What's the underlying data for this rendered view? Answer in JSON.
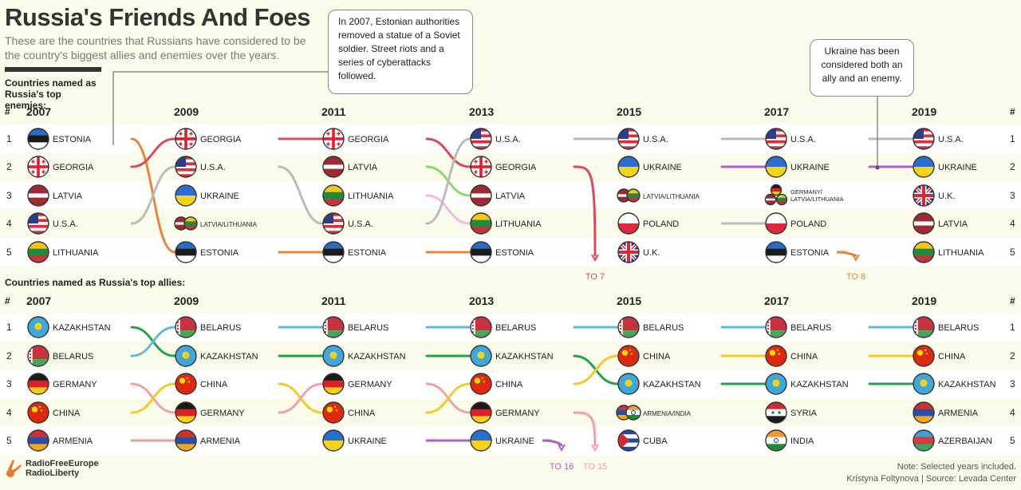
{
  "header": {
    "title": "Russia's Friends And Foes",
    "subtitle": "These are the countries that Russians have considered to be the country's biggest allies and enemies over the years."
  },
  "callouts": {
    "estonia": "In 2007, Estonian authorities removed a statue of a Soviet soldier. Street riots and a series of cyberattacks followed.",
    "ukraine": "Ukraine has been considered both an ally and an enemy."
  },
  "footer": {
    "logo_line1": "RadioFreeEurope",
    "logo_line2": "RadioLiberty",
    "note": "Note: Selected years included.",
    "credit": "Kristyna Foltynova | Source: Levada Center"
  },
  "colors": {
    "estonia": "#e8853a",
    "georgia": "#d94a5a",
    "usa": "#2a7fc1",
    "latvia": "#8fd866",
    "lithuania": "#f5b8e0",
    "ukraine": "#b061c4",
    "latvia_lithuania": "#9de07a",
    "germany_latvia_lithuania": "#f5b8e0",
    "kazakhstan": "#22a34a",
    "belarus": "#62b9dd",
    "germany": "#f2a0a8",
    "china": "#f5c928",
    "armenia": "#e8a0a0"
  },
  "chart_data": [
    {
      "type": "bump",
      "title": "Countries named as Russia's top enemies:",
      "rank_header": "#",
      "years": [
        "2007",
        "2009",
        "2011",
        "2013",
        "2015",
        "2017",
        "2019"
      ],
      "ranks": [
        1,
        2,
        3,
        4,
        5
      ],
      "rankings": {
        "2007": [
          "ESTONIA",
          "GEORGIA",
          "LATVIA",
          "U.S.A.",
          "LITHUANIA"
        ],
        "2009": [
          "GEORGIA",
          "U.S.A.",
          "UKRAINE",
          "LATVIA/LITHUANIA",
          "ESTONIA"
        ],
        "2011": [
          "GEORGIA",
          "LATVIA",
          "LITHUANIA",
          "U.S.A.",
          "ESTONIA"
        ],
        "2013": [
          "U.S.A.",
          "GEORGIA",
          "LATVIA",
          "LITHUANIA",
          "ESTONIA"
        ],
        "2015": [
          "U.S.A.",
          "UKRAINE",
          "LATVIA/LITHUANIA",
          "POLAND",
          "U.K."
        ],
        "2017": [
          "U.S.A.",
          "UKRAINE",
          "GERMANY/ LATVIA/LITHUANIA",
          "POLAND",
          "ESTONIA"
        ],
        "2019": [
          "U.S.A.",
          "UKRAINE",
          "U.K.",
          "LATVIA",
          "LITHUANIA"
        ]
      },
      "exits": [
        {
          "country": "GEORGIA",
          "from_year": "2013",
          "to_rank": "TO 7"
        },
        {
          "country": "ESTONIA",
          "from_year": "2017",
          "to_rank": "TO 8"
        }
      ]
    },
    {
      "type": "bump",
      "title": "Countries named as Russia's top allies:",
      "rank_header": "#",
      "years": [
        "2007",
        "2009",
        "2011",
        "2013",
        "2015",
        "2017",
        "2019"
      ],
      "ranks": [
        1,
        2,
        3,
        4,
        5
      ],
      "rankings": {
        "2007": [
          "KAZAKHSTAN",
          "BELARUS",
          "GERMANY",
          "CHINA",
          "ARMENIA"
        ],
        "2009": [
          "BELARUS",
          "KAZAKHSTAN",
          "CHINA",
          "GERMANY",
          "ARMENIA"
        ],
        "2011": [
          "BELARUS",
          "KAZAKHSTAN",
          "GERMANY",
          "CHINA",
          "UKRAINE"
        ],
        "2013": [
          "BELARUS",
          "KAZAKHSTAN",
          "CHINA",
          "GERMANY",
          "UKRAINE"
        ],
        "2015": [
          "BELARUS",
          "CHINA",
          "KAZAKHSTAN",
          "ARMENIA/INDIA",
          "CUBA"
        ],
        "2017": [
          "BELARUS",
          "CHINA",
          "KAZAKHSTAN",
          "SYRIA",
          "INDIA"
        ],
        "2019": [
          "BELARUS",
          "CHINA",
          "KAZAKHSTAN",
          "ARMENIA",
          "AZERBAIJAN"
        ]
      },
      "exits": [
        {
          "country": "UKRAINE",
          "from_year": "2013",
          "to_rank": "TO 16"
        },
        {
          "country": "GERMANY",
          "from_year": "2013",
          "to_rank": "TO 15"
        }
      ]
    }
  ]
}
